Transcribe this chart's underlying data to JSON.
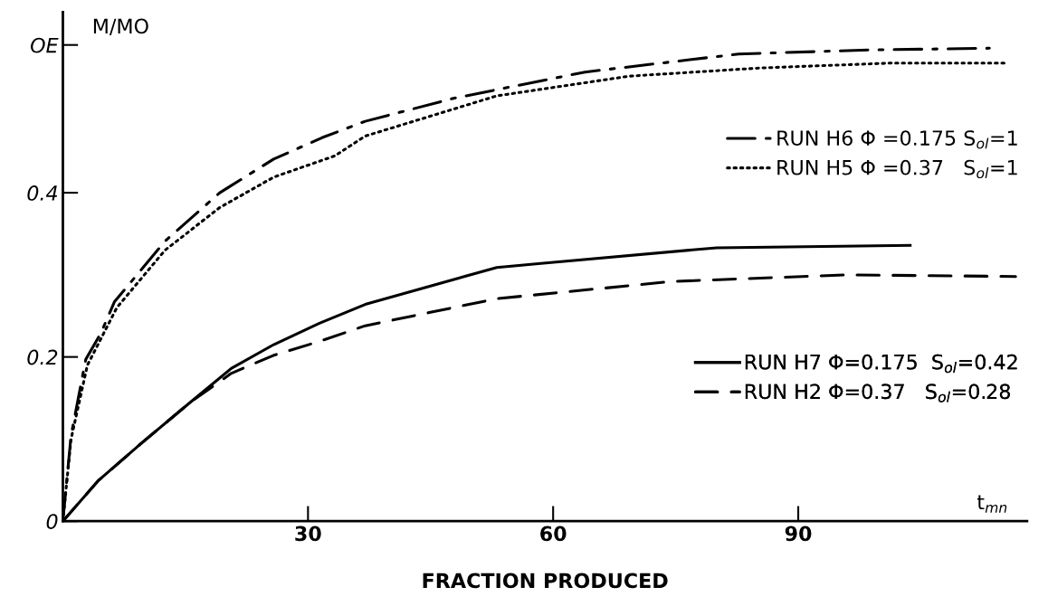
{
  "chart_data": {
    "type": "line",
    "xlabel": "FRACTION PRODUCED",
    "ylabel": "M/MO",
    "annotations": [
      "t$_{mn}$"
    ],
    "xlim": [
      0,
      118
    ],
    "ylim": [
      0,
      0.62
    ],
    "xticks": [
      30,
      60,
      90
    ],
    "yticks": [
      {
        "value": 0,
        "label": "0"
      },
      {
        "value": 0.2,
        "label": "0.2"
      },
      {
        "value": 0.4,
        "label": "0.4"
      },
      {
        "value": 0.58,
        "label": "OE"
      }
    ],
    "grid": false,
    "legend": "right",
    "series": [
      {
        "name": "RUN H6 Φ =0.175 S$_{ol}$=1",
        "color": "#000000",
        "line_style": "dashdot",
        "x": [
          0,
          1,
          2.8,
          4.7,
          6.3,
          12.5,
          19.2,
          25.8,
          31.7,
          37,
          47.8,
          63.9,
          82.7,
          98.9,
          113.4
        ],
        "values": [
          0,
          0.104,
          0.197,
          0.23,
          0.267,
          0.341,
          0.4,
          0.441,
          0.467,
          0.487,
          0.515,
          0.547,
          0.569,
          0.574,
          0.576
        ]
      },
      {
        "name": "RUN H5 Φ =0.37   S$_{ol}$=1",
        "color": "#000000",
        "line_style": "dotted",
        "x": [
          0,
          1,
          3,
          6.6,
          12.5,
          19.2,
          25.8,
          33.3,
          37,
          53.1,
          69.3,
          85.4,
          101.6,
          115.5
        ],
        "values": [
          0,
          0.1,
          0.19,
          0.26,
          0.33,
          0.382,
          0.419,
          0.445,
          0.469,
          0.518,
          0.542,
          0.552,
          0.558,
          0.558
        ]
      },
      {
        "name": "RUN H7 Φ=0.175  S$_{ol}$=0.42",
        "color": "#000000",
        "line_style": "solid",
        "x": [
          0,
          4.3,
          9.5,
          15.5,
          20.6,
          25.8,
          31.4,
          37,
          53.1,
          58.5,
          80,
          103.7
        ],
        "values": [
          0,
          0.049,
          0.094,
          0.144,
          0.186,
          0.215,
          0.241,
          0.264,
          0.309,
          0.314,
          0.333,
          0.336
        ]
      },
      {
        "name": "RUN H2 Φ=0.37   S$_{ol}$=0.28",
        "color": "#000000",
        "line_style": "dashed",
        "x": [
          0,
          4.3,
          9.5,
          15.5,
          20.6,
          25.8,
          31.4,
          37,
          53.1,
          74.6,
          96.1,
          116.6
        ],
        "values": [
          0,
          0.049,
          0.094,
          0.144,
          0.18,
          0.202,
          0.219,
          0.238,
          0.271,
          0.292,
          0.3,
          0.298
        ]
      }
    ]
  }
}
